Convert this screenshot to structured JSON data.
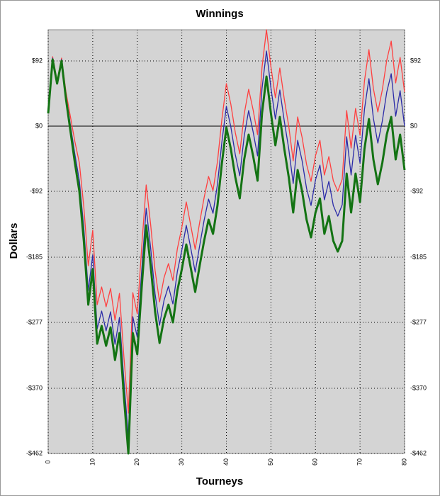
{
  "chart_data": {
    "type": "line",
    "title": "Winnings",
    "x_label": "Tourneys",
    "y_label": "Dollars",
    "x": [
      0,
      1,
      2,
      3,
      4,
      5,
      6,
      7,
      8,
      9,
      10,
      11,
      12,
      13,
      14,
      15,
      16,
      17,
      18,
      19,
      20,
      21,
      22,
      23,
      24,
      25,
      26,
      27,
      28,
      29,
      30,
      31,
      32,
      33,
      34,
      35,
      36,
      37,
      38,
      39,
      40,
      41,
      42,
      43,
      44,
      45,
      46,
      47,
      48,
      49,
      50,
      51,
      52,
      53,
      54,
      55,
      56,
      57,
      58,
      59,
      60,
      61,
      62,
      63,
      64,
      65,
      66,
      67,
      68,
      69,
      70,
      71,
      72,
      73,
      74,
      75,
      76,
      77,
      78,
      79,
      80
    ],
    "series": [
      {
        "color": "#ff4040",
        "width": 1.3,
        "values": [
          22,
          98,
          64,
          96,
          48,
          13,
          -22,
          -52,
          -114,
          -197,
          -147,
          -252,
          -227,
          -255,
          -229,
          -274,
          -236,
          -326,
          -405,
          -235,
          -265,
          -170,
          -83,
          -139,
          -204,
          -248,
          -214,
          -194,
          -218,
          -173,
          -143,
          -107,
          -140,
          -174,
          -136,
          -101,
          -71,
          -91,
          -50,
          10,
          60,
          31,
          -9,
          -39,
          17,
          52,
          23,
          -12,
          83,
          136,
          84,
          40,
          82,
          38,
          0,
          -49,
          13,
          -16,
          -54,
          -78,
          -42,
          -20,
          -69,
          -43,
          -77,
          -92,
          -75,
          22,
          -31,
          25,
          -13,
          64,
          108,
          53,
          20,
          51,
          93,
          120,
          61,
          97,
          48
        ]
      },
      {
        "color": "#2b2ba8",
        "width": 1.3,
        "values": [
          20,
          96,
          62,
          94,
          43,
          1,
          -40,
          -77,
          -144,
          -232,
          -182,
          -286,
          -261,
          -289,
          -262,
          -308,
          -270,
          -359,
          -439,
          -269,
          -298,
          -203,
          -116,
          -172,
          -237,
          -281,
          -246,
          -226,
          -251,
          -205,
          -175,
          -140,
          -172,
          -206,
          -169,
          -133,
          -103,
          -123,
          -82,
          -22,
          28,
          -1,
          -40,
          -70,
          -14,
          22,
          -8,
          -42,
          53,
          106,
          54,
          10,
          51,
          7,
          -32,
          -81,
          -20,
          -49,
          -88,
          -112,
          -76,
          -55,
          -104,
          -78,
          -112,
          -127,
          -111,
          -15,
          -69,
          -13,
          -52,
          24,
          67,
          11,
          -24,
          7,
          48,
          74,
          14,
          50,
          0
        ]
      },
      {
        "color": "#137313",
        "width": 3,
        "values": [
          18,
          94,
          60,
          92,
          38,
          -7,
          -52,
          -92,
          -162,
          -252,
          -202,
          -307,
          -282,
          -310,
          -284,
          -330,
          -292,
          -382,
          -462,
          -292,
          -322,
          -227,
          -140,
          -197,
          -262,
          -306,
          -272,
          -252,
          -277,
          -232,
          -202,
          -167,
          -200,
          -234,
          -197,
          -162,
          -132,
          -152,
          -112,
          -52,
          -2,
          -32,
          -72,
          -102,
          -47,
          -12,
          -42,
          -77,
          18,
          70,
          18,
          -27,
          13,
          -32,
          -72,
          -122,
          -62,
          -92,
          -132,
          -157,
          -122,
          -102,
          -152,
          -127,
          -162,
          -177,
          -162,
          -67,
          -122,
          -67,
          -107,
          -32,
          10,
          -47,
          -82,
          -52,
          -12,
          13,
          -47,
          -12,
          -62
        ]
      }
    ],
    "xlim": [
      0,
      80
    ],
    "xticks": [
      0,
      10,
      20,
      30,
      40,
      50,
      60,
      70,
      80
    ],
    "ylim": [
      -462,
      136
    ],
    "yticks": [
      {
        "value": -462,
        "label": "-$462"
      },
      {
        "value": -370,
        "label": "-$370"
      },
      {
        "value": -277,
        "label": "-$277"
      },
      {
        "value": -185,
        "label": "-$185"
      },
      {
        "value": -92,
        "label": "-$92"
      },
      {
        "value": 0,
        "label": "$0"
      },
      {
        "value": 92,
        "label": "$92"
      }
    ],
    "grid": true,
    "zero_line": true,
    "plot_background": "#d4d4d4"
  }
}
